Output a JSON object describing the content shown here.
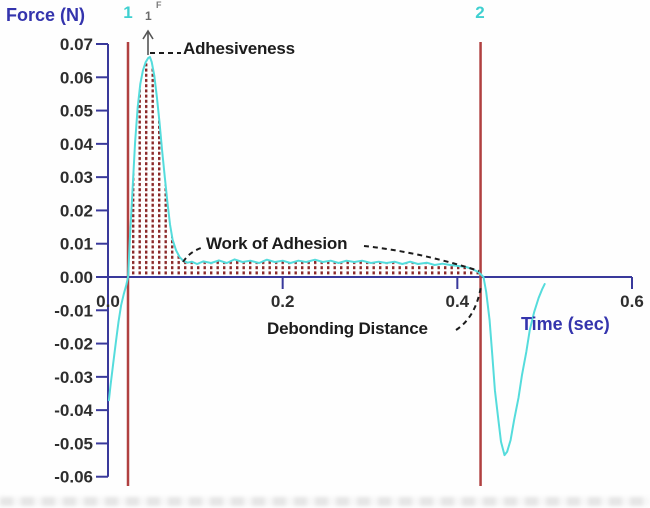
{
  "chart_data": {
    "type": "line",
    "title": "",
    "xlabel": "Time (sec)",
    "ylabel": "Force (N)",
    "xlim": [
      0,
      0.6
    ],
    "ylim": [
      -0.06,
      0.07
    ],
    "grid": false,
    "legend": "none",
    "x_ticks": [
      0,
      0.2,
      0.4,
      0.6
    ],
    "x_tick_labels": [
      "0.0",
      "0.2",
      "0.4",
      "0.6"
    ],
    "y_ticks": [
      0.07,
      0.06,
      0.05,
      0.04,
      0.03,
      0.02,
      0.01,
      0,
      -0.01,
      -0.02,
      -0.03,
      -0.04,
      -0.05,
      -0.06
    ],
    "y_tick_labels": [
      "0.07",
      "0.06",
      "0.05",
      "0.04",
      "0.03",
      "0.02",
      "0.01",
      "0.00",
      "-0.01",
      "-0.02",
      "-0.03",
      "-0.04",
      "-0.05",
      "-0.06"
    ],
    "anchors": {
      "start": {
        "label": "1",
        "time": 0.0229
      },
      "end": {
        "label": "2",
        "time": 0.4266
      }
    },
    "peak_flag": {
      "letter": "F",
      "number": "1"
    },
    "annotations": {
      "adhesiveness": {
        "text": "Adhesiveness"
      },
      "work_of_adhesion": {
        "text": "Work of Adhesion"
      },
      "debonding_distance": {
        "text": "Debonding Distance"
      }
    },
    "shaded_region": {
      "from_time": 0.023,
      "to_time": 0.43,
      "style": "red dotted hatch under curve"
    },
    "colors": {
      "axis": "#39399b",
      "axis_label": "#3434ad",
      "tick_label": "#2e2e2e",
      "curve": "#55dcdc",
      "anchor_line": "#b04040",
      "anchor_label": "#3fd0d0",
      "fill_dots": "#8b2828",
      "annotation": "#1c1c1c"
    },
    "series": [
      {
        "name": "force",
        "color": "#55dcdc",
        "points": [
          [
            0.001,
            -0.037
          ],
          [
            0.003,
            -0.0324
          ],
          [
            0.006,
            -0.026
          ],
          [
            0.009,
            -0.0195
          ],
          [
            0.012,
            -0.0135
          ],
          [
            0.015,
            -0.0085
          ],
          [
            0.018,
            -0.0052
          ],
          [
            0.021,
            -0.0024
          ],
          [
            0.023,
            0
          ],
          [
            0.025,
            0.011
          ],
          [
            0.028,
            0.026
          ],
          [
            0.031,
            0.0405
          ],
          [
            0.034,
            0.051
          ],
          [
            0.037,
            0.058
          ],
          [
            0.04,
            0.062
          ],
          [
            0.043,
            0.0645
          ],
          [
            0.046,
            0.0658
          ],
          [
            0.048,
            0.0661
          ],
          [
            0.05,
            0.0646
          ],
          [
            0.053,
            0.0605
          ],
          [
            0.056,
            0.054
          ],
          [
            0.059,
            0.0465
          ],
          [
            0.062,
            0.038
          ],
          [
            0.065,
            0.03
          ],
          [
            0.068,
            0.0225
          ],
          [
            0.071,
            0.0158
          ],
          [
            0.074,
            0.0112
          ],
          [
            0.078,
            0.008
          ],
          [
            0.082,
            0.006
          ],
          [
            0.086,
            0.0049
          ],
          [
            0.091,
            0.0043
          ],
          [
            0.096,
            0.0046
          ],
          [
            0.102,
            0.0039
          ],
          [
            0.109,
            0.0047
          ],
          [
            0.118,
            0.0042
          ],
          [
            0.127,
            0.005
          ],
          [
            0.136,
            0.0042
          ],
          [
            0.145,
            0.0053
          ],
          [
            0.154,
            0.0045
          ],
          [
            0.163,
            0.0049
          ],
          [
            0.173,
            0.0042
          ],
          [
            0.182,
            0.0052
          ],
          [
            0.191,
            0.0045
          ],
          [
            0.2,
            0.0049
          ],
          [
            0.209,
            0.0042
          ],
          [
            0.218,
            0.0049
          ],
          [
            0.227,
            0.0045
          ],
          [
            0.237,
            0.0052
          ],
          [
            0.246,
            0.0045
          ],
          [
            0.255,
            0.0049
          ],
          [
            0.264,
            0.0042
          ],
          [
            0.273,
            0.0049
          ],
          [
            0.282,
            0.0045
          ],
          [
            0.291,
            0.0049
          ],
          [
            0.301,
            0.0042
          ],
          [
            0.31,
            0.0046
          ],
          [
            0.319,
            0.0042
          ],
          [
            0.328,
            0.0046
          ],
          [
            0.337,
            0.0039
          ],
          [
            0.346,
            0.0046
          ],
          [
            0.355,
            0.0039
          ],
          [
            0.365,
            0.0043
          ],
          [
            0.374,
            0.0036
          ],
          [
            0.383,
            0.004
          ],
          [
            0.392,
            0.0036
          ],
          [
            0.401,
            0.0033
          ],
          [
            0.41,
            0.003
          ],
          [
            0.417,
            0.0024
          ],
          [
            0.424,
            0.0015
          ],
          [
            0.43,
            0
          ],
          [
            0.433,
            -0.0045
          ],
          [
            0.437,
            -0.013
          ],
          [
            0.44,
            -0.0235
          ],
          [
            0.443,
            -0.034
          ],
          [
            0.447,
            -0.043
          ],
          [
            0.45,
            -0.0495
          ],
          [
            0.454,
            -0.0535
          ],
          [
            0.457,
            -0.0525
          ],
          [
            0.461,
            -0.049
          ],
          [
            0.465,
            -0.043
          ],
          [
            0.47,
            -0.0363
          ],
          [
            0.474,
            -0.0294
          ],
          [
            0.479,
            -0.0225
          ],
          [
            0.483,
            -0.0159
          ],
          [
            0.488,
            -0.0105
          ],
          [
            0.493,
            -0.0063
          ],
          [
            0.497,
            -0.0038
          ],
          [
            0.5,
            -0.0021
          ]
        ]
      }
    ]
  }
}
